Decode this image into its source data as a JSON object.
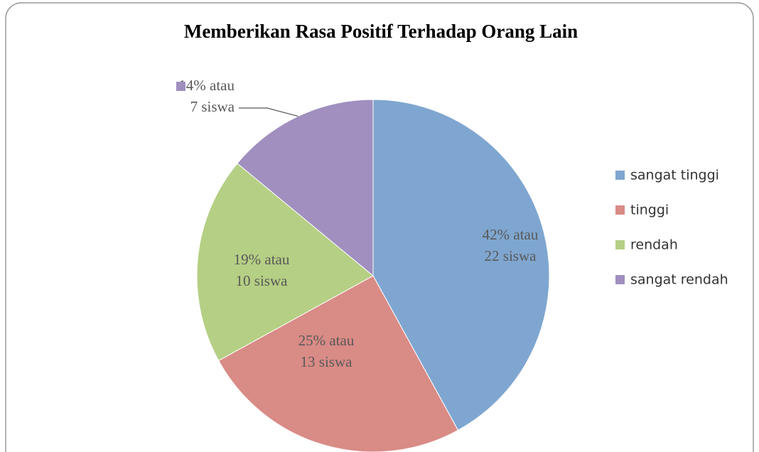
{
  "chart_data": {
    "type": "pie",
    "title": "Memberikan Rasa Positif Terhadap Orang Lain",
    "categories": [
      "sangat tinggi",
      "tinggi",
      "rendah",
      "sangat rendah"
    ],
    "values": [
      42,
      25,
      19,
      14
    ],
    "value_labels": [
      [
        "42% atau",
        "22 siswa"
      ],
      [
        "25% atau",
        "13 siswa"
      ],
      [
        "19% atau",
        "10 siswa"
      ],
      [
        "14% atau",
        "7 siswa"
      ]
    ],
    "colors": [
      "#7fa6d0",
      "#d98b86",
      "#b5cf84",
      "#a08fbf"
    ],
    "legend": "right"
  }
}
